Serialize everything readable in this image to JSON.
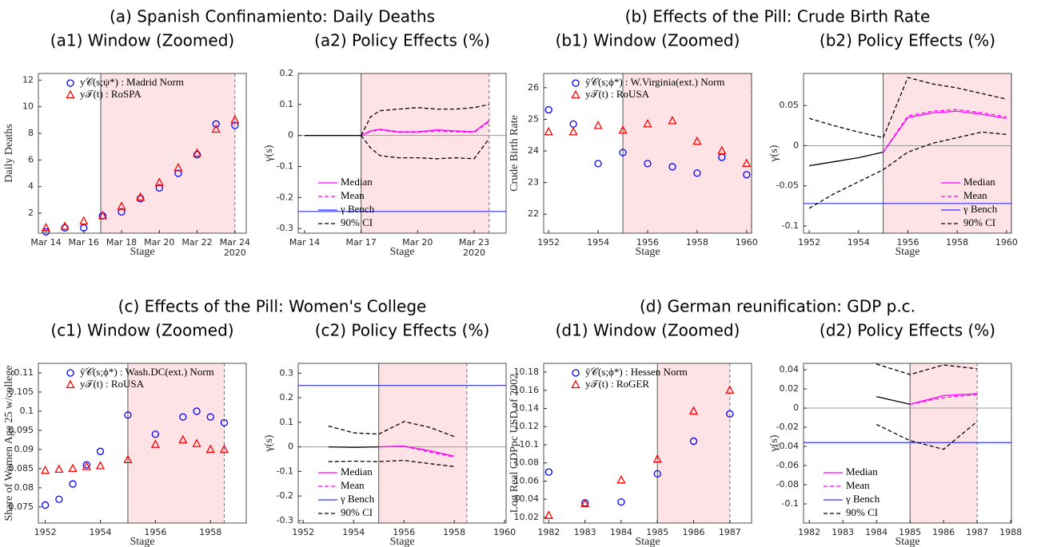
{
  "panel_titles": [
    "(a) Spanish Confinamiento: Daily Deaths",
    "(b) Effects of the Pill: Crude Birth Rate",
    "(c) Effects of the Pill: Women's College",
    "(d) German reunification: GDP p.c."
  ],
  "chart_data": [
    {
      "type": "scatter",
      "title": "(a1) Window (Zoomed)",
      "x_label": "Stage",
      "y_label": "Daily Deaths",
      "x_note": "2020",
      "xlim": [
        13.6,
        24.6
      ],
      "ylim": [
        0.5,
        12.5
      ],
      "yticks": [
        2,
        4,
        6,
        8,
        10,
        12
      ],
      "xticks": [
        {
          "value": 14,
          "label": "Mar 14"
        },
        {
          "value": 16,
          "label": "Mar 16"
        },
        {
          "value": 18,
          "label": "Mar 18"
        },
        {
          "value": 20,
          "label": "Mar 20"
        },
        {
          "value": 22,
          "label": "Mar 22"
        },
        {
          "value": 24,
          "label": "Mar 24"
        }
      ],
      "treatment_start": 16.9,
      "window_end": 24,
      "legend": "upper-left",
      "series": [
        {
          "name": "y𝒞(s;ψ*) : Madrid Norm",
          "color": "#0000ff",
          "marker": "circle",
          "x": [
            14,
            15,
            16,
            17,
            18,
            19,
            20,
            21,
            22,
            23,
            24
          ],
          "values": [
            0.6,
            0.9,
            0.9,
            1.8,
            2.1,
            3.1,
            3.9,
            5.0,
            6.4,
            8.7,
            8.6
          ]
        },
        {
          "name": "y𝒯(t) : RoSPA",
          "color": "#ff0000",
          "marker": "triangle",
          "x": [
            14,
            15,
            16,
            17,
            18,
            19,
            20,
            21,
            22,
            23,
            24
          ],
          "values": [
            0.9,
            1.0,
            1.4,
            1.8,
            2.5,
            3.2,
            4.3,
            5.4,
            6.5,
            8.3,
            9.0
          ]
        }
      ]
    },
    {
      "type": "line",
      "title": "(a2) Policy Effects (%)",
      "x_label": "Stage",
      "y_label": "γ(s)",
      "x_note": "2020",
      "xlim": [
        13.66,
        24.7
      ],
      "ylim": [
        -0.315,
        0.2
      ],
      "yticks": [
        -0.3,
        -0.2,
        -0.1,
        0,
        0.1,
        0.2
      ],
      "xticks": [
        {
          "value": 14,
          "label": "Mar 14"
        },
        {
          "value": 17,
          "label": "Mar 17"
        },
        {
          "value": 20,
          "label": "Mar 20"
        },
        {
          "value": 23,
          "label": "Mar 23"
        }
      ],
      "treatment_start": 17,
      "window_end": 23.8,
      "ref_line": 0,
      "legend": "lower-left",
      "series": [
        {
          "color": "#000000",
          "x": [
            14,
            15,
            16,
            17
          ],
          "values": [
            0,
            0,
            0,
            0
          ]
        },
        {
          "name": "Median",
          "color": "#ff00ff",
          "x": [
            17,
            17.5,
            18,
            19,
            20,
            21,
            22,
            23,
            23.8
          ],
          "values": [
            0,
            0.015,
            0.02,
            0.012,
            0.012,
            0.018,
            0.015,
            0.012,
            0.048
          ]
        },
        {
          "name": "Mean",
          "color": "#ff00ff",
          "dash": true,
          "x": [
            17,
            17.5,
            18,
            19,
            20,
            21,
            22,
            23,
            23.8
          ],
          "values": [
            0,
            0.013,
            0.018,
            0.01,
            0.01,
            0.015,
            0.012,
            0.01,
            0.045
          ]
        },
        {
          "name": "γ Bench",
          "color": "#3333ff",
          "kind": "hline",
          "values": [
            -0.245
          ]
        },
        {
          "name": "90% CI",
          "color": "#000000",
          "dash": true,
          "x": [
            17,
            17.5,
            18,
            19,
            20,
            21,
            22,
            23,
            23.8
          ],
          "values": [
            0,
            0.06,
            0.08,
            0.085,
            0.09,
            0.085,
            0.085,
            0.09,
            0.1
          ]
        },
        {
          "color": "#000000",
          "dash": true,
          "x": [
            17,
            17.5,
            18,
            19,
            20,
            21,
            22,
            23,
            23.8
          ],
          "values": [
            0,
            -0.04,
            -0.065,
            -0.072,
            -0.072,
            -0.075,
            -0.072,
            -0.075,
            -0.01
          ]
        }
      ]
    },
    {
      "type": "scatter",
      "title": "(b1) Window (Zoomed)",
      "x_label": "Stage",
      "y_label": "Crude Birth Rate",
      "xlim": [
        1951.8,
        1960.2
      ],
      "ylim": [
        21.4,
        26.45
      ],
      "yticks": [
        22,
        23,
        24,
        25,
        26
      ],
      "xticks": [
        1952,
        1954,
        1956,
        1958,
        1960
      ],
      "treatment_start": 1955,
      "window_end": 1960.2,
      "legend": "upper-left",
      "series": [
        {
          "name": "ỹ𝒞(s;ϕ*) : W.Virginia(ext.) Norm",
          "color": "#0000ff",
          "marker": "circle",
          "x": [
            1952,
            1953,
            1954,
            1955,
            1956,
            1957,
            1958,
            1959,
            1960
          ],
          "values": [
            25.3,
            24.85,
            23.6,
            23.95,
            23.6,
            23.5,
            23.3,
            23.8,
            23.25
          ]
        },
        {
          "name": "y𝒯(t) : RoUSA",
          "color": "#ff0000",
          "marker": "triangle",
          "x": [
            1952,
            1953,
            1954,
            1955,
            1956,
            1957,
            1958,
            1959,
            1960
          ],
          "values": [
            24.6,
            24.6,
            24.8,
            24.65,
            24.85,
            24.95,
            24.3,
            24.0,
            23.6
          ]
        }
      ]
    },
    {
      "type": "line",
      "title": "(b2) Policy Effects (%)",
      "x_label": "Stage",
      "y_label": "γ(s)",
      "xlim": [
        1951.77,
        1960.2
      ],
      "ylim": [
        -0.109,
        0.09
      ],
      "yticks": [
        -0.1,
        -0.05,
        0,
        0.05
      ],
      "xticks": [
        1952,
        1954,
        1956,
        1958,
        1960
      ],
      "treatment_start": 1955,
      "window_end": 1960.2,
      "ref_line": 0,
      "legend": "lower-right",
      "series": [
        {
          "color": "#000000",
          "x": [
            1952,
            1953,
            1954,
            1955
          ],
          "values": [
            -0.025,
            -0.02,
            -0.015,
            -0.008
          ]
        },
        {
          "name": "Median",
          "color": "#ff00ff",
          "x": [
            1955,
            1956,
            1957,
            1958,
            1959,
            1960
          ],
          "values": [
            -0.008,
            0.035,
            0.041,
            0.043,
            0.039,
            0.034
          ]
        },
        {
          "name": "Mean",
          "color": "#ff00ff",
          "dash": true,
          "x": [
            1955,
            1956,
            1957,
            1958,
            1959,
            1960
          ],
          "values": [
            -0.008,
            0.037,
            0.043,
            0.045,
            0.041,
            0.036
          ]
        },
        {
          "name": "γ Bench",
          "color": "#3333ff",
          "kind": "hline",
          "values": [
            -0.072
          ]
        },
        {
          "name": "90% CI",
          "color": "#000000",
          "dash": true,
          "x": [
            1952,
            1953,
            1954,
            1955,
            1956,
            1957,
            1958,
            1959,
            1960
          ],
          "values": [
            0.034,
            0.025,
            0.017,
            0.01,
            0.085,
            0.077,
            0.072,
            0.065,
            0.058
          ]
        },
        {
          "color": "#000000",
          "dash": true,
          "x": [
            1952,
            1953,
            1954,
            1955,
            1956,
            1957,
            1958,
            1959,
            1960
          ],
          "values": [
            -0.078,
            -0.06,
            -0.045,
            -0.03,
            -0.008,
            0.003,
            0.01,
            0.017,
            0.014
          ]
        }
      ]
    },
    {
      "type": "scatter",
      "title": "(c1) Window (Zoomed)",
      "x_label": "Stage",
      "y_label": "Share of Women Age 25 w/college",
      "xlim": [
        1951.75,
        1959.3
      ],
      "ylim": [
        0.0708,
        0.1125
      ],
      "yticks": [
        0.075,
        0.08,
        0.085,
        0.09,
        0.095,
        0.1,
        0.105,
        0.11
      ],
      "xticks": [
        1952,
        1954,
        1956,
        1958
      ],
      "treatment_start": 1955,
      "window_end": 1958.5,
      "legend": "upper-left",
      "series": [
        {
          "name": "ỹ𝒞(s;ϕ*) : Wash.DC(ext.) Norm",
          "color": "#0000ff",
          "marker": "circle",
          "x": [
            1952,
            1952.5,
            1953,
            1953.5,
            1954,
            1955,
            1956,
            1957,
            1957.5,
            1958,
            1958.5
          ],
          "values": [
            0.0755,
            0.077,
            0.081,
            0.086,
            0.0895,
            0.099,
            0.094,
            0.0985,
            0.1,
            0.0985,
            0.097
          ]
        },
        {
          "name": "y𝒯(t) : RoUSA",
          "color": "#ff0000",
          "marker": "triangle",
          "x": [
            1952,
            1952.5,
            1953,
            1953.5,
            1954,
            1955,
            1956,
            1957,
            1957.5,
            1958,
            1958.5
          ],
          "values": [
            0.0845,
            0.0848,
            0.085,
            0.0855,
            0.0857,
            0.0873,
            0.0913,
            0.0925,
            0.0915,
            0.09,
            0.09
          ]
        }
      ]
    },
    {
      "type": "line",
      "title": "(c2) Policy Effects (%)",
      "x_label": "Stage",
      "y_label": "γ(s)",
      "xlim": [
        1951.8,
        1960.06
      ],
      "ylim": [
        -0.31,
        0.34
      ],
      "yticks": [
        -0.3,
        -0.2,
        -0.1,
        0,
        0.1,
        0.2,
        0.3
      ],
      "xticks": [
        1952,
        1954,
        1956,
        1958,
        1960
      ],
      "treatment_start": 1955,
      "window_end": 1958.5,
      "ref_line": 0,
      "legend": "lower-left",
      "series": [
        {
          "color": "#000000",
          "x": [
            1953,
            1954,
            1955
          ],
          "values": [
            0,
            -0.002,
            0
          ]
        },
        {
          "name": "Median",
          "color": "#ff00ff",
          "x": [
            1955,
            1956,
            1957,
            1958
          ],
          "values": [
            0,
            0.003,
            -0.015,
            -0.038
          ]
        },
        {
          "name": "Mean",
          "color": "#ff00ff",
          "dash": true,
          "x": [
            1955,
            1956,
            1957,
            1958
          ],
          "values": [
            0,
            0.002,
            -0.02,
            -0.042
          ]
        },
        {
          "name": "γ Bench",
          "color": "#3333ff",
          "kind": "hline",
          "values": [
            0.25
          ]
        },
        {
          "name": "90% CI",
          "color": "#000000",
          "dash": true,
          "x": [
            1953,
            1954,
            1955,
            1956,
            1957,
            1958
          ],
          "values": [
            0.085,
            0.057,
            0.052,
            0.103,
            0.08,
            0.042
          ]
        },
        {
          "color": "#000000",
          "dash": true,
          "x": [
            1953,
            1954,
            1955,
            1956,
            1957,
            1958
          ],
          "values": [
            -0.06,
            -0.058,
            -0.06,
            -0.055,
            -0.068,
            -0.08
          ]
        }
      ]
    },
    {
      "type": "scatter",
      "title": "(d1) Window (Zoomed)",
      "x_label": "Stage",
      "y_label": "Log Real GDPpc USD of 2002",
      "xlim": [
        1981.86,
        1987.6
      ],
      "ylim": [
        10.0138,
        10.1897
      ],
      "yticks": [
        10.02,
        10.04,
        10.06,
        10.08,
        10.1,
        10.12,
        10.14,
        10.16,
        10.18
      ],
      "xticks": [
        1982,
        1983,
        1984,
        1985,
        1986,
        1987
      ],
      "treatment_start": 1985,
      "window_end": 1987,
      "legend": "upper-left",
      "series": [
        {
          "name": "ỹ𝒞(s;ϕ*) : Hessen Norm",
          "color": "#0000ff",
          "marker": "circle",
          "x": [
            1982,
            1983,
            1984,
            1985,
            1986,
            1987
          ],
          "values": [
            10.07,
            10.036,
            10.037,
            10.068,
            10.104,
            10.134
          ]
        },
        {
          "name": "y𝒯(t) : RoGER",
          "color": "#ff0000",
          "marker": "triangle",
          "x": [
            1982,
            1983,
            1984,
            1985,
            1986,
            1987
          ],
          "values": [
            10.022,
            10.035,
            10.061,
            10.084,
            10.137,
            10.16
          ]
        }
      ]
    },
    {
      "type": "line",
      "title": "(d2) Policy Effects (%)",
      "x_label": "Stage",
      "y_label": "γ(s)",
      "xlim": [
        1981.83,
        1988.02
      ],
      "ylim": [
        -0.12,
        0.0467
      ],
      "yticks": [
        -0.1,
        -0.08,
        -0.06,
        -0.04,
        -0.02,
        0,
        0.02,
        0.04
      ],
      "xticks": [
        1982,
        1983,
        1984,
        1985,
        1986,
        1987,
        1988
      ],
      "treatment_start": 1985,
      "window_end": 1987,
      "ref_line": 0,
      "legend": "lower-left",
      "series": [
        {
          "color": "#000000",
          "x": [
            1984,
            1985
          ],
          "values": [
            0.012,
            0.004
          ]
        },
        {
          "name": "Median",
          "color": "#ff00ff",
          "x": [
            1985,
            1986,
            1987
          ],
          "values": [
            0.004,
            0.013,
            0.015
          ]
        },
        {
          "name": "Mean",
          "color": "#ff00ff",
          "dash": true,
          "x": [
            1985,
            1986,
            1987
          ],
          "values": [
            0.004,
            0.011,
            0.014
          ]
        },
        {
          "name": "γ Bench",
          "color": "#3333ff",
          "kind": "hline",
          "values": [
            -0.036
          ]
        },
        {
          "name": "90% CI",
          "color": "#000000",
          "dash": true,
          "x": [
            1984,
            1985,
            1986,
            1987
          ],
          "values": [
            0.046,
            0.035,
            0.045,
            0.041
          ]
        },
        {
          "color": "#000000",
          "dash": true,
          "x": [
            1984,
            1985,
            1986,
            1987
          ],
          "values": [
            -0.017,
            -0.034,
            -0.043,
            -0.014
          ]
        }
      ]
    }
  ]
}
